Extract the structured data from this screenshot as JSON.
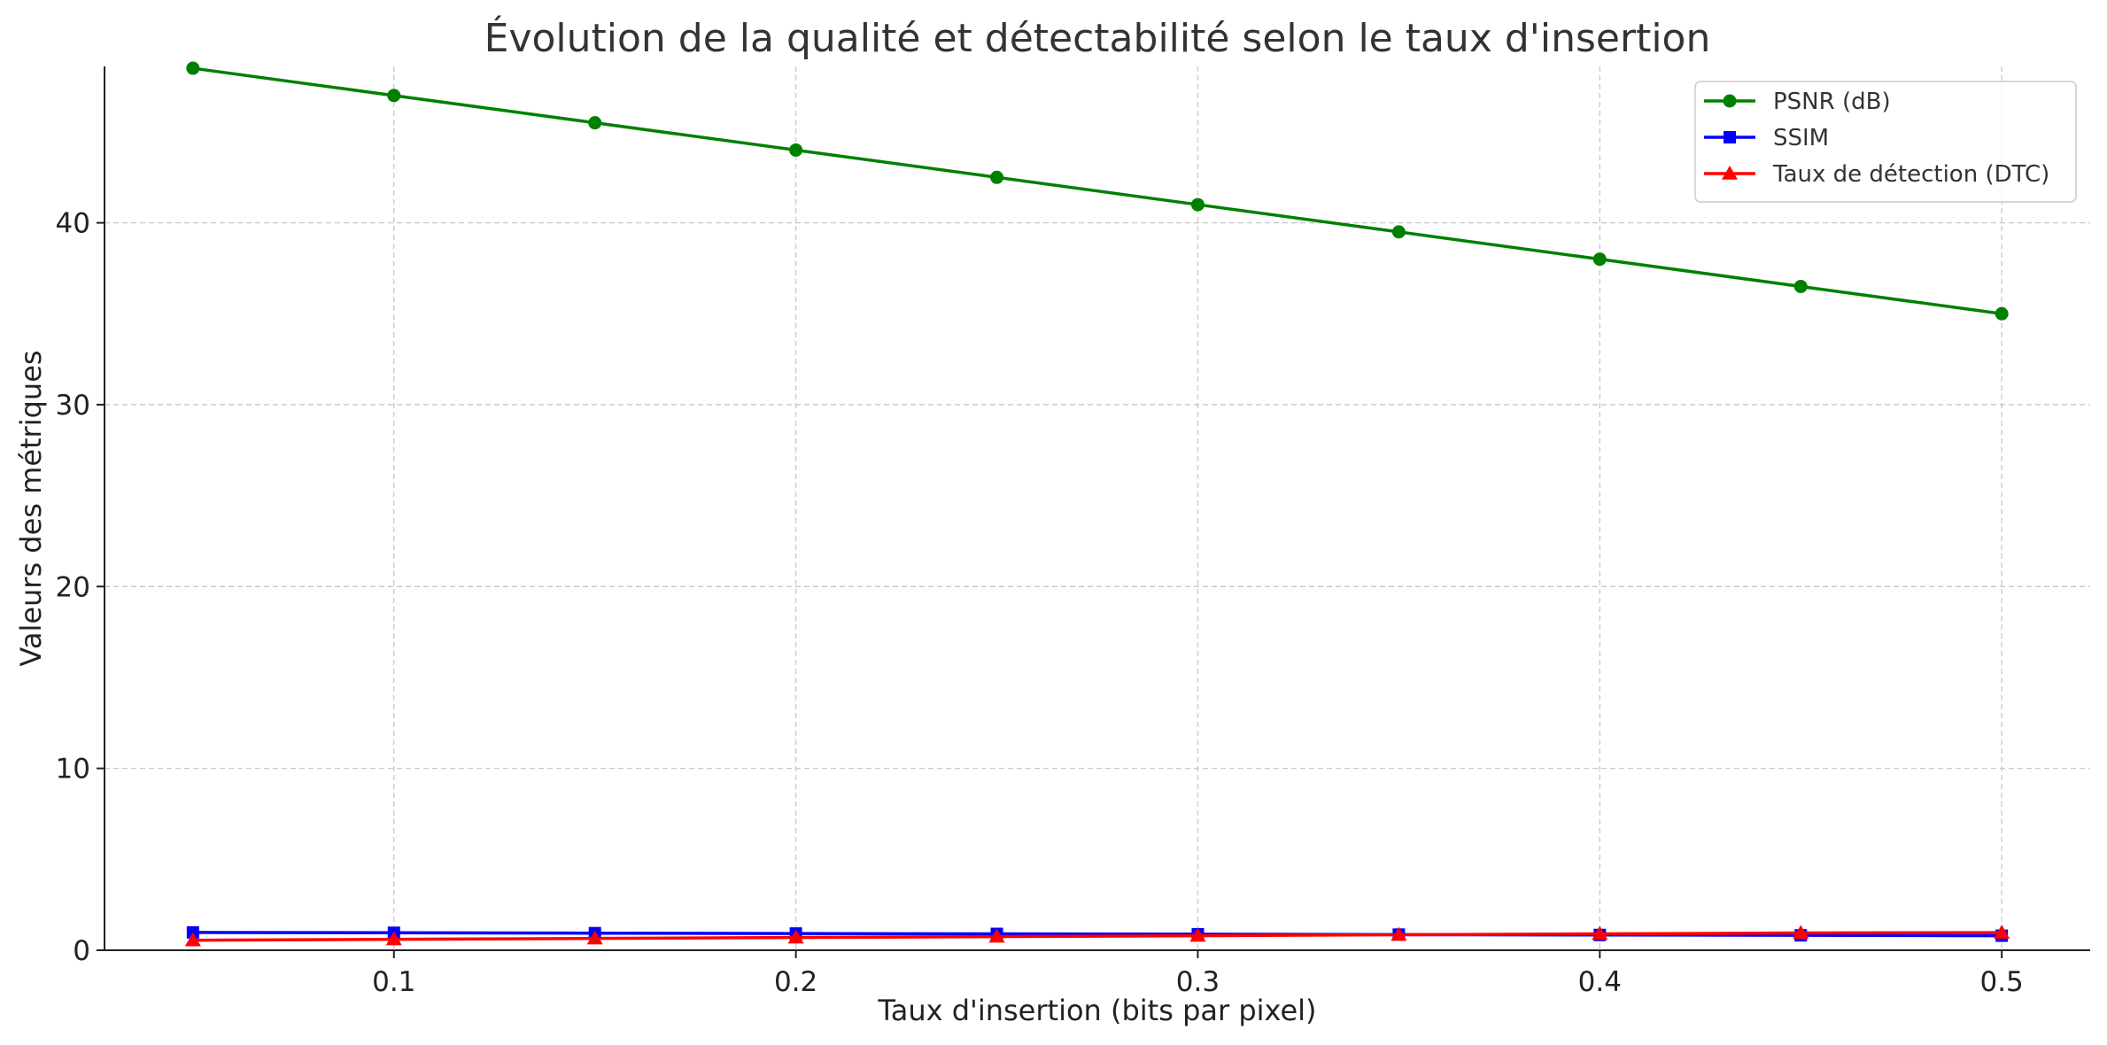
{
  "chart_data": {
    "type": "line",
    "title": "Évolution de la qualité et détectabilité selon le taux d'insertion",
    "xlabel": "Taux d'insertion (bits par pixel)",
    "ylabel": "Valeurs des métriques",
    "xlim": [
      0.028,
      0.522
    ],
    "ylim": [
      0,
      48.6
    ],
    "x_ticks": [
      0.1,
      0.2,
      0.3,
      0.4,
      0.5
    ],
    "x_tick_labels": [
      "0.1",
      "0.2",
      "0.3",
      "0.4",
      "0.5"
    ],
    "y_ticks": [
      0,
      10,
      20,
      30,
      40
    ],
    "y_tick_labels": [
      "0",
      "10",
      "20",
      "30",
      "40"
    ],
    "grid": true,
    "legend_position": "top-right",
    "x": [
      0.05,
      0.1,
      0.15,
      0.2,
      0.25,
      0.3,
      0.35,
      0.4,
      0.45,
      0.5
    ],
    "series": [
      {
        "name": "PSNR (dB)",
        "color": "#008000",
        "marker": "circle",
        "values": [
          48.5,
          47.0,
          45.5,
          44.0,
          42.5,
          41.0,
          39.5,
          38.0,
          36.5,
          35.0
        ]
      },
      {
        "name": "SSIM",
        "color": "#0000ff",
        "marker": "square",
        "values": [
          0.98,
          0.96,
          0.94,
          0.92,
          0.9,
          0.88,
          0.86,
          0.84,
          0.82,
          0.8
        ]
      },
      {
        "name": "Taux de détection (DTC)",
        "color": "#ff0000",
        "marker": "triangle",
        "values": [
          0.55,
          0.6,
          0.65,
          0.7,
          0.75,
          0.8,
          0.85,
          0.9,
          0.95,
          0.97
        ]
      }
    ]
  }
}
